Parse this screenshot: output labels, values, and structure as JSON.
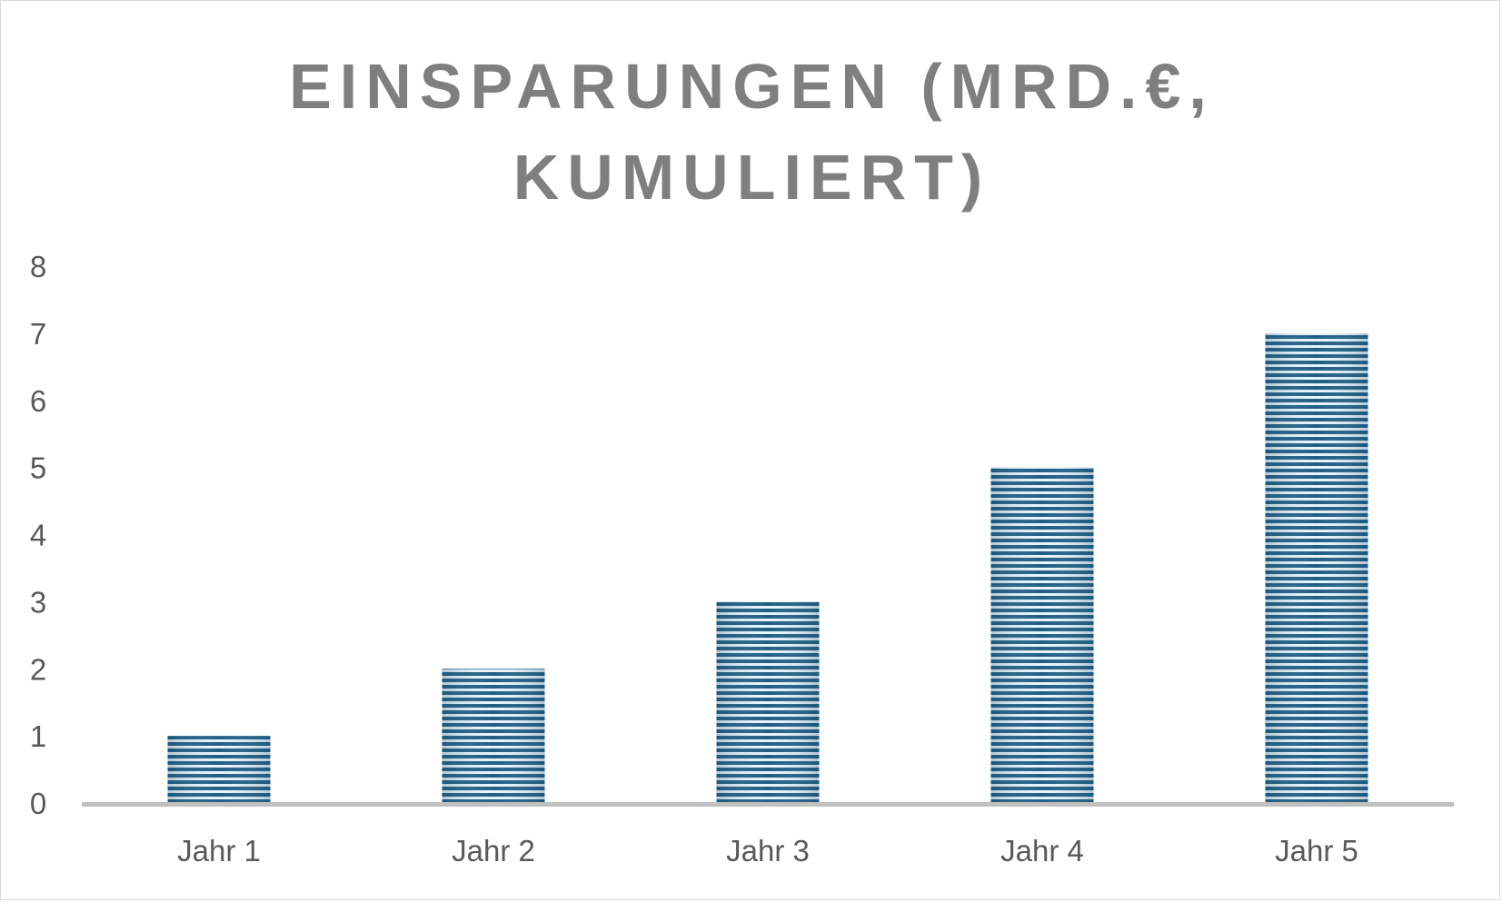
{
  "chart_data": {
    "type": "bar",
    "title_lines": [
      "Einsparungen (Mrd.€,",
      "kumuliert)"
    ],
    "categories": [
      "Jahr 1",
      "Jahr 2",
      "Jahr 3",
      "Jahr 4",
      "Jahr 5"
    ],
    "values": [
      1,
      2,
      3,
      5,
      7
    ],
    "ylim": [
      0,
      8
    ],
    "yticks": [
      "0",
      "1",
      "2",
      "3",
      "4",
      "5",
      "6",
      "7",
      "8"
    ],
    "grid": false,
    "legend": "none",
    "colors": {
      "bar_dark": "#1f5f86",
      "bar_light": "#e8f3fa",
      "axis": "#bfbfbf",
      "title": "#7f7f7f",
      "text": "#595959"
    }
  }
}
